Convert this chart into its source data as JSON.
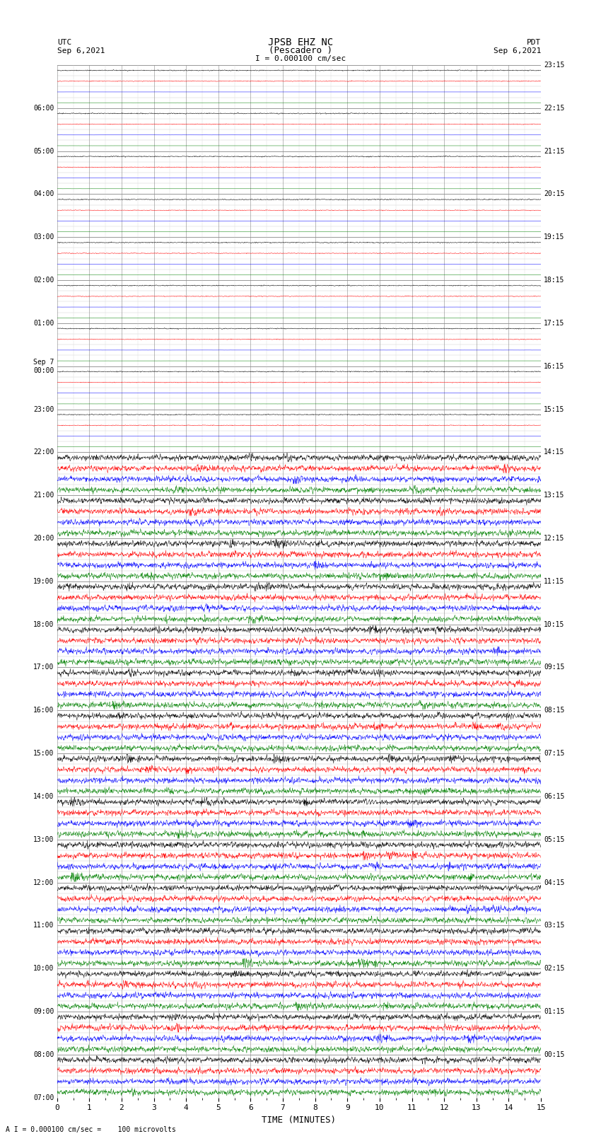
{
  "title_line1": "JPSB EHZ NC",
  "title_line2": "(Pescadero )",
  "scale_text": "I = 0.000100 cm/sec",
  "left_label_line1": "UTC",
  "left_label_line2": "Sep 6,2021",
  "right_label_line1": "PDT",
  "right_label_line2": "Sep 6,2021",
  "bottom_label": "A I = 0.000100 cm/sec =    100 microvolts",
  "xlabel": "TIME (MINUTES)",
  "xlim": [
    0,
    15
  ],
  "xticks": [
    0,
    1,
    2,
    3,
    4,
    5,
    6,
    7,
    8,
    9,
    10,
    11,
    12,
    13,
    14,
    15
  ],
  "figsize": [
    8.5,
    16.13
  ],
  "dpi": 100,
  "bg_color": "#ffffff",
  "trace_colors": [
    "black",
    "red",
    "blue",
    "green"
  ],
  "utc_hours": [
    "07:00",
    "08:00",
    "09:00",
    "10:00",
    "11:00",
    "12:00",
    "13:00",
    "14:00",
    "15:00",
    "16:00",
    "17:00",
    "18:00",
    "19:00",
    "20:00",
    "21:00",
    "22:00",
    "23:00",
    "Sep 7\n00:00",
    "01:00",
    "02:00",
    "03:00",
    "04:00",
    "05:00",
    "06:00"
  ],
  "pdt_hours": [
    "00:15",
    "01:15",
    "02:15",
    "03:15",
    "04:15",
    "05:15",
    "06:15",
    "07:15",
    "08:15",
    "09:15",
    "10:15",
    "11:15",
    "12:15",
    "13:15",
    "14:15",
    "15:15",
    "16:15",
    "17:15",
    "18:15",
    "19:15",
    "20:15",
    "21:15",
    "22:15",
    "23:15"
  ],
  "n_hours": 24,
  "traces_per_hour": 4,
  "noise_scale_quiet": 0.025,
  "noise_scale_active": 0.12,
  "quiet_hours": 9,
  "seed": 42,
  "grid_color": "#888888",
  "minor_grid_color": "#cccccc"
}
